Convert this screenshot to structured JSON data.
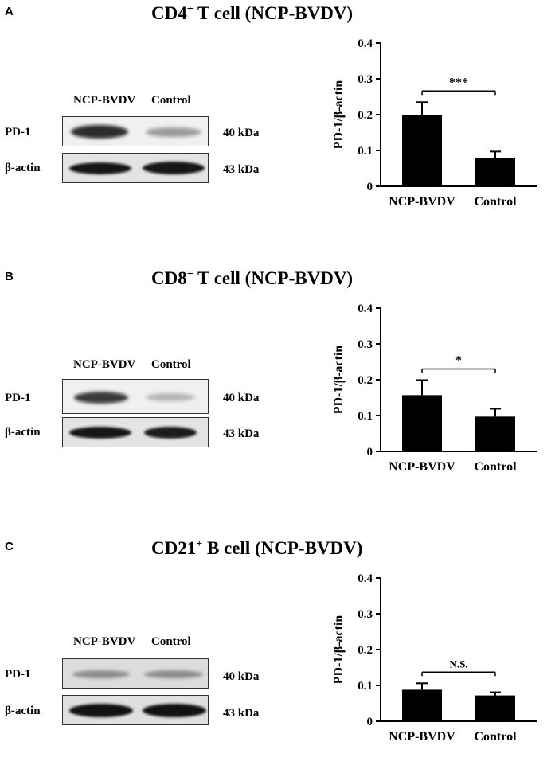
{
  "panels": [
    {
      "letter": "A",
      "title_cell": "CD4",
      "title_sup": "+",
      "title_rest": " T cell (NCP-BVDV)",
      "lane_labels": [
        "NCP-BVDV",
        "Control"
      ],
      "row_labels": [
        "PD-1",
        "β-actin"
      ],
      "kda_labels": [
        "40 kDa",
        "43 kDa"
      ]
    },
    {
      "letter": "B",
      "title_cell": "CD8",
      "title_sup": "+",
      "title_rest": " T cell (NCP-BVDV)",
      "lane_labels": [
        "NCP-BVDV",
        "Control"
      ],
      "row_labels": [
        "PD-1",
        "β-actin"
      ],
      "kda_labels": [
        "40 kDa",
        "43 kDa"
      ]
    },
    {
      "letter": "C",
      "title_cell": "CD21",
      "title_sup": "+",
      "title_rest": " B cell (NCP-BVDV)",
      "lane_labels": [
        "NCP-BVDV",
        "Control"
      ],
      "row_labels": [
        "PD-1",
        "β-actin"
      ],
      "kda_labels": [
        "40 kDa",
        "43 kDa"
      ]
    }
  ],
  "chart_data": [
    {
      "type": "bar",
      "categories": [
        "NCP-BVDV",
        "Control"
      ],
      "values": [
        0.2,
        0.08
      ],
      "errors": [
        0.035,
        0.017
      ],
      "ylabel": "PD-1/β-actin",
      "ylim": [
        0,
        0.4
      ],
      "yticks": [
        "0",
        "0.1",
        "0.2",
        "0.3",
        "0.4"
      ],
      "significance": "***",
      "bar_color": "#000000"
    },
    {
      "type": "bar",
      "categories": [
        "NCP-BVDV",
        "Control"
      ],
      "values": [
        0.157,
        0.097
      ],
      "errors": [
        0.042,
        0.022
      ],
      "ylabel": "PD-1/β-actin",
      "ylim": [
        0,
        0.4
      ],
      "yticks": [
        "0",
        "0.1",
        "0.2",
        "0.3",
        "0.4"
      ],
      "significance": "*",
      "bar_color": "#000000"
    },
    {
      "type": "bar",
      "categories": [
        "NCP-BVDV",
        "Control"
      ],
      "values": [
        0.088,
        0.072
      ],
      "errors": [
        0.018,
        0.009
      ],
      "ylabel": "PD-1/β-actin",
      "ylim": [
        0,
        0.4
      ],
      "yticks": [
        "0",
        "0.1",
        "0.2",
        "0.3",
        "0.4"
      ],
      "significance": "N.S.",
      "bar_color": "#000000"
    }
  ]
}
